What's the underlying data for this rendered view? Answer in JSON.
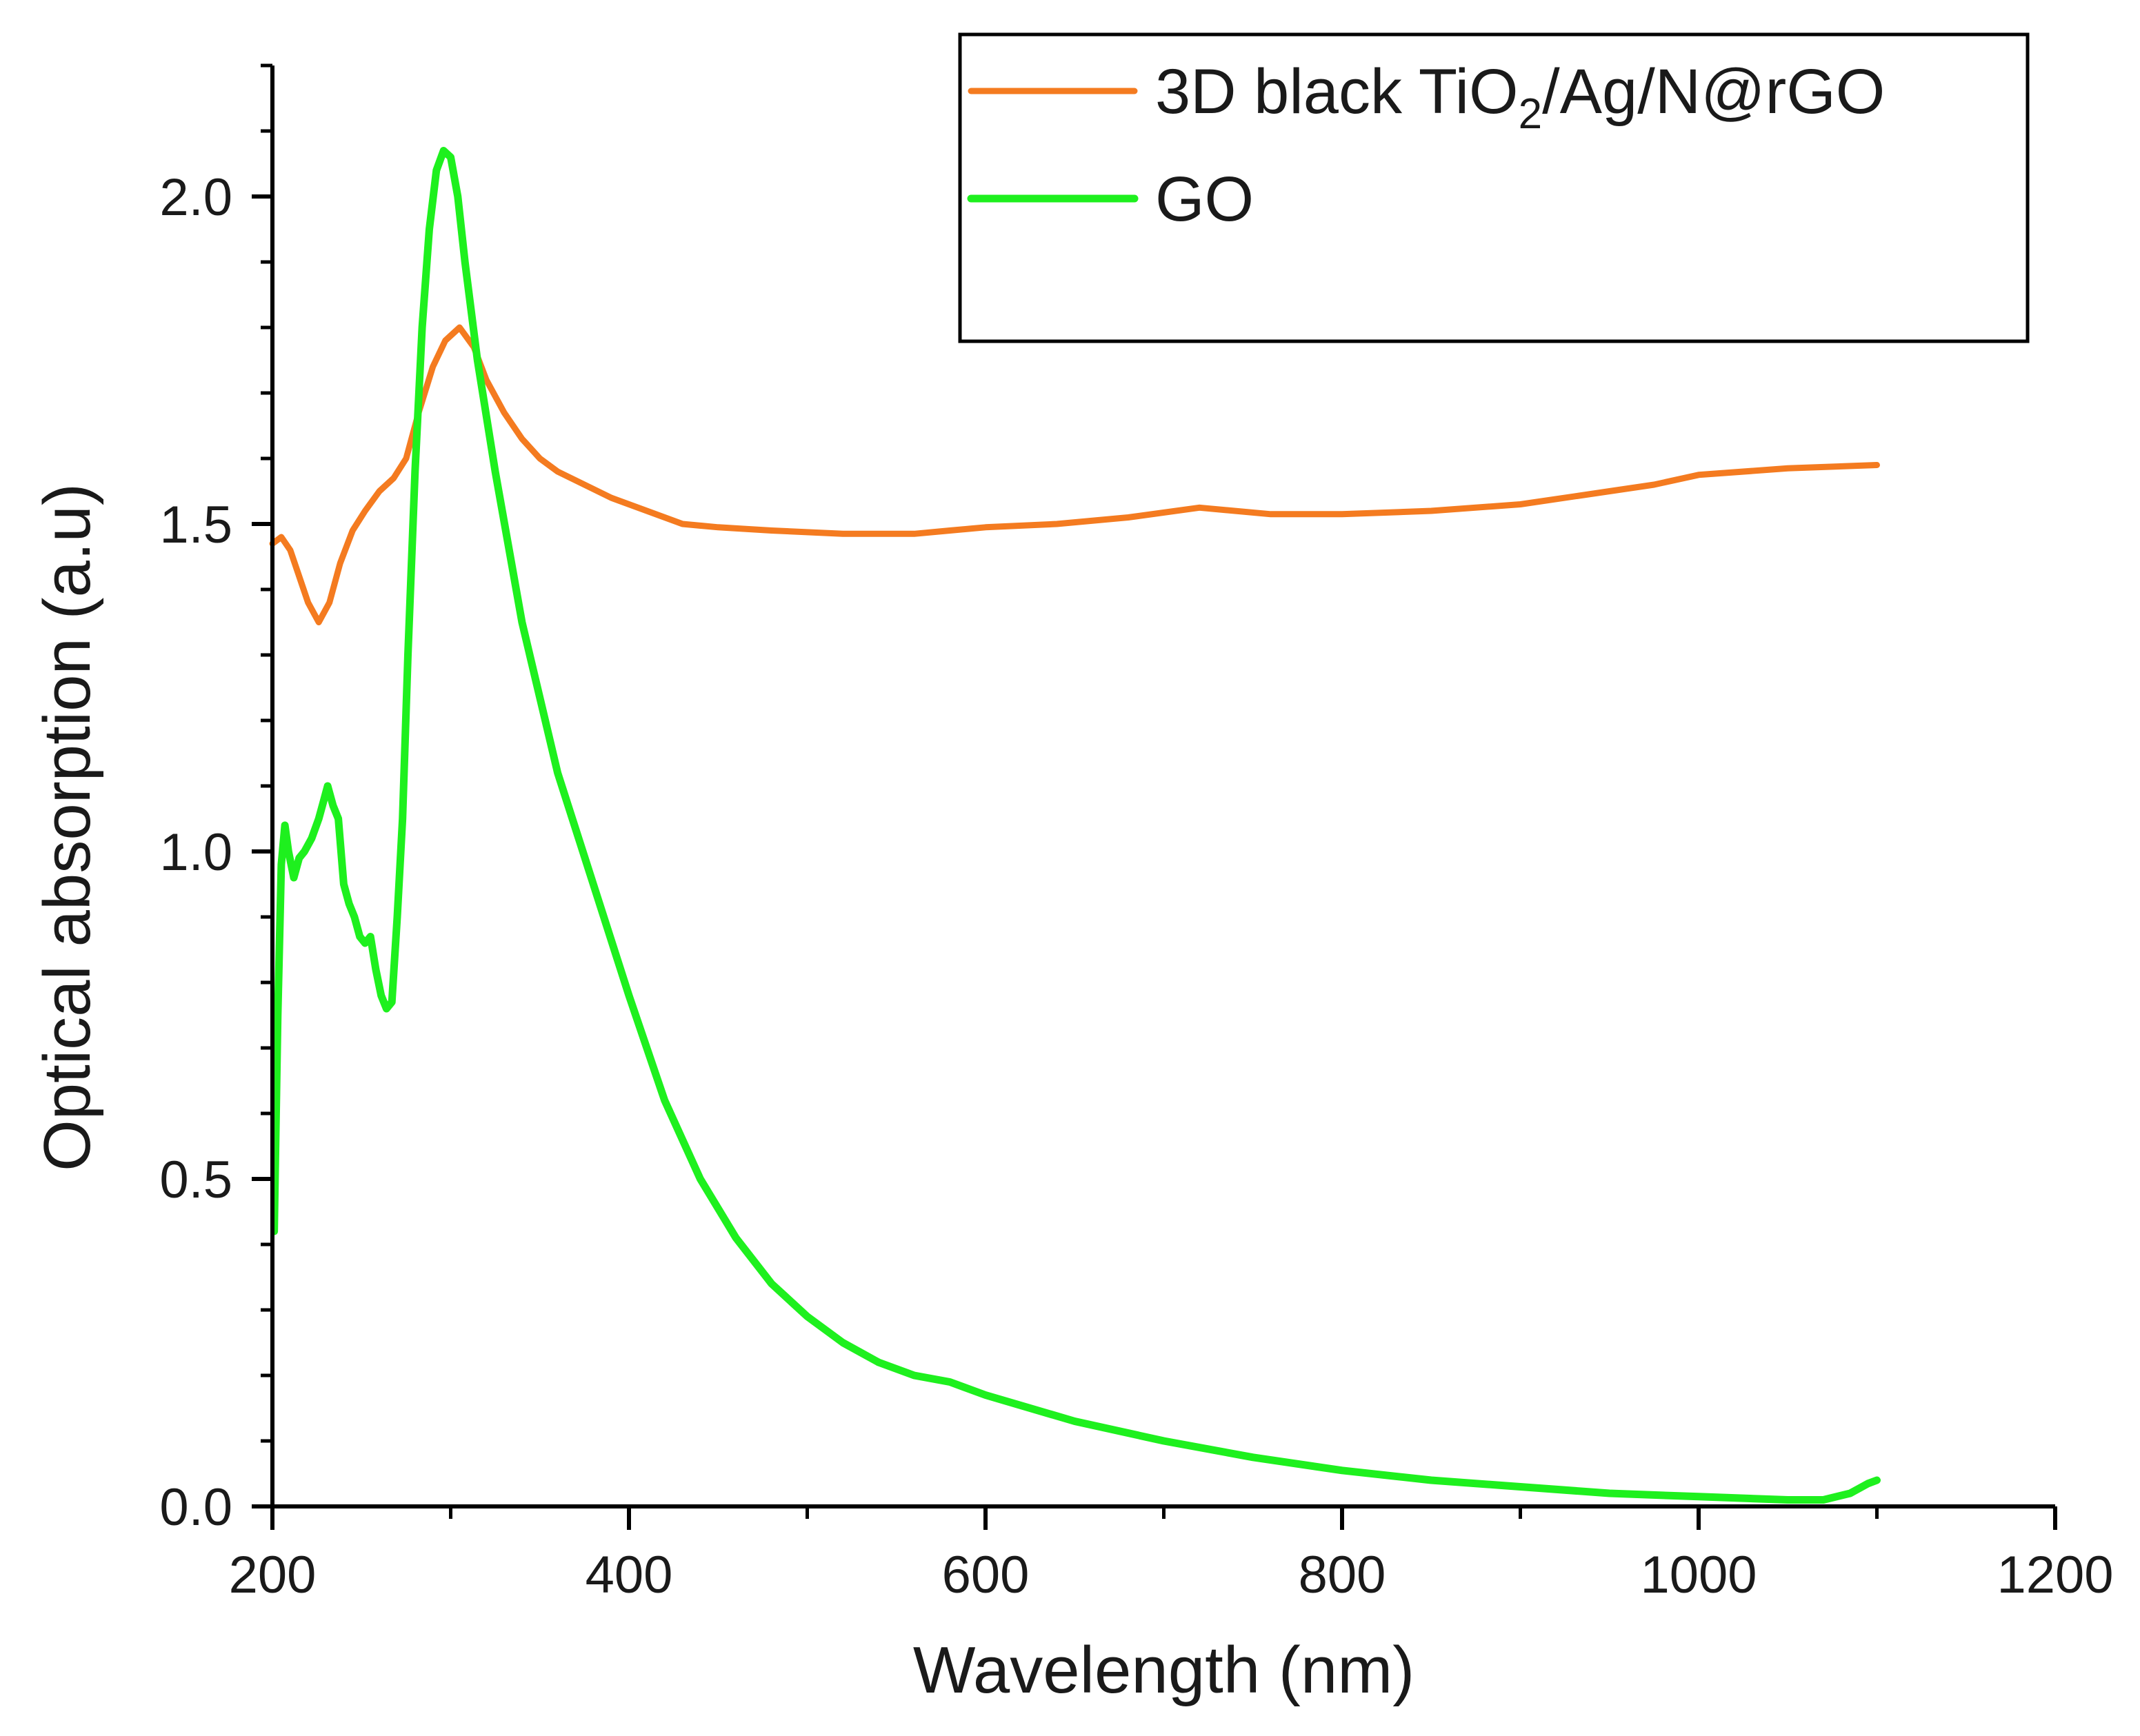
{
  "chart_data": {
    "type": "line",
    "title": "",
    "xlabel": "Wavelength (nm)",
    "ylabel": "Optical absorption (a.u)",
    "xlim": [
      200,
      1200
    ],
    "ylim": [
      0.0,
      2.2
    ],
    "x_ticks": [
      200,
      400,
      600,
      800,
      1000,
      1200
    ],
    "x_tick_labels": [
      "200",
      "400",
      "600",
      "800",
      "1000",
      "1200"
    ],
    "y_ticks": [
      0.0,
      0.5,
      1.0,
      1.5,
      2.0
    ],
    "y_tick_labels": [
      "0.0",
      "0.5",
      "1.0",
      "1.5",
      "2.0"
    ],
    "grid": false,
    "legend_position": "top-right",
    "legend": {
      "items": [
        {
          "label_main": "3D black TiO",
          "label_sub": "2",
          "label_rest": "/Ag/N@rGO",
          "color": "#f47b20"
        },
        {
          "label_main": "GO",
          "label_sub": "",
          "label_rest": "",
          "color": "#1ef01e"
        }
      ]
    },
    "series": [
      {
        "name": "3D black TiO2/Ag/N@rGO",
        "color": "#f47b20",
        "x": [
          200,
          205,
          210,
          215,
          220,
          226,
          232,
          238,
          245,
          252,
          260,
          268,
          275,
          282,
          290,
          297,
          305,
          313,
          320,
          330,
          340,
          350,
          360,
          375,
          390,
          410,
          430,
          450,
          480,
          520,
          560,
          580,
          600,
          640,
          680,
          720,
          760,
          800,
          850,
          900,
          950,
          975,
          1000,
          1050,
          1100
        ],
        "y": [
          1.47,
          1.48,
          1.46,
          1.42,
          1.38,
          1.35,
          1.38,
          1.44,
          1.49,
          1.52,
          1.55,
          1.57,
          1.6,
          1.67,
          1.74,
          1.78,
          1.8,
          1.77,
          1.72,
          1.67,
          1.63,
          1.6,
          1.58,
          1.56,
          1.54,
          1.52,
          1.5,
          1.495,
          1.49,
          1.485,
          1.485,
          1.49,
          1.495,
          1.5,
          1.51,
          1.525,
          1.515,
          1.515,
          1.52,
          1.53,
          1.55,
          1.56,
          1.575,
          1.585,
          1.59
        ]
      },
      {
        "name": "GO",
        "color": "#1ef01e",
        "x": [
          201,
          203,
          205,
          207,
          209,
          212,
          215,
          218,
          222,
          226,
          229,
          231,
          234,
          237,
          240,
          243,
          246,
          249,
          252,
          255,
          258,
          261,
          264,
          267,
          270,
          273,
          276,
          280,
          284,
          288,
          292,
          296,
          300,
          304,
          308,
          315,
          325,
          340,
          360,
          380,
          400,
          420,
          440,
          460,
          480,
          500,
          520,
          540,
          560,
          580,
          600,
          650,
          700,
          750,
          800,
          850,
          900,
          950,
          1000,
          1050,
          1070,
          1085,
          1095,
          1100
        ],
        "y": [
          0.42,
          0.75,
          0.98,
          1.04,
          1.0,
          0.96,
          0.99,
          1.0,
          1.02,
          1.05,
          1.08,
          1.1,
          1.07,
          1.05,
          0.95,
          0.92,
          0.9,
          0.87,
          0.86,
          0.87,
          0.82,
          0.78,
          0.76,
          0.77,
          0.9,
          1.05,
          1.3,
          1.58,
          1.8,
          1.95,
          2.04,
          2.07,
          2.06,
          2.0,
          1.9,
          1.75,
          1.58,
          1.35,
          1.12,
          0.95,
          0.78,
          0.62,
          0.5,
          0.41,
          0.34,
          0.29,
          0.25,
          0.22,
          0.2,
          0.19,
          0.17,
          0.13,
          0.1,
          0.075,
          0.055,
          0.04,
          0.03,
          0.02,
          0.015,
          0.01,
          0.01,
          0.02,
          0.035,
          0.04
        ]
      }
    ]
  }
}
